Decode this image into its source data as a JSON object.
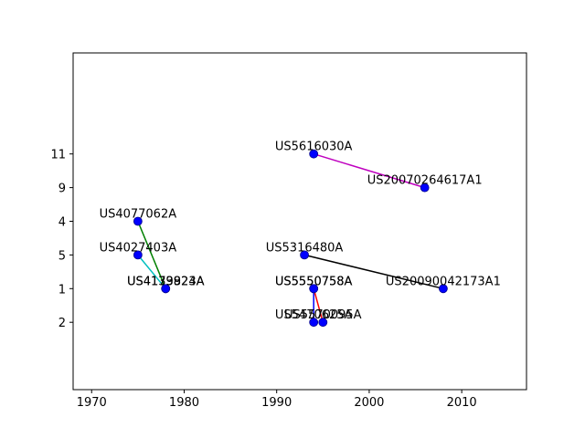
{
  "chart_data": {
    "type": "scatter",
    "title": "",
    "xlabel": "",
    "ylabel": "",
    "xlim": [
      1968,
      2017
    ],
    "y_slots": [
      -1,
      9
    ],
    "x_ticks": [
      1970,
      1980,
      1990,
      2000,
      2010
    ],
    "y_ticks": [
      {
        "slot": 1,
        "label": "2"
      },
      {
        "slot": 2,
        "label": "1"
      },
      {
        "slot": 3,
        "label": "5"
      },
      {
        "slot": 4,
        "label": "4"
      },
      {
        "slot": 5,
        "label": "9"
      },
      {
        "slot": 6,
        "label": "11"
      }
    ],
    "grid": false,
    "marker_color": "#0000ff",
    "points": [
      {
        "id": "p1",
        "label": "US4077062A",
        "x": 1975,
        "slot": 4
      },
      {
        "id": "p2",
        "label": "US4027403A",
        "x": 1975,
        "slot": 3
      },
      {
        "id": "p3",
        "label": "US4179824A",
        "x": 1978,
        "slot": 2
      },
      {
        "id": "p4",
        "label": "US4133923A",
        "x": 1978,
        "slot": 2
      },
      {
        "id": "p5",
        "label": "US5616030A",
        "x": 1994,
        "slot": 6
      },
      {
        "id": "p6",
        "label": "US20070264617A1",
        "x": 2006,
        "slot": 5
      },
      {
        "id": "p7",
        "label": "US5316480A",
        "x": 1993,
        "slot": 3
      },
      {
        "id": "p8",
        "label": "US20090042173A1",
        "x": 2008,
        "slot": 2
      },
      {
        "id": "p9",
        "label": "US5550758A",
        "x": 1994,
        "slot": 2
      },
      {
        "id": "p10",
        "label": "US5550758A",
        "x": 1994,
        "slot": 2
      },
      {
        "id": "p11",
        "label": "US5470625A",
        "x": 1994,
        "slot": 1
      },
      {
        "id": "p12",
        "label": "US5570095A",
        "x": 1995,
        "slot": 1
      }
    ],
    "links": [
      {
        "from": "p1",
        "to": "p3",
        "color": "#008000"
      },
      {
        "from": "p2",
        "to": "p4",
        "color": "#00bfbf"
      },
      {
        "from": "p5",
        "to": "p6",
        "color": "#bf00bf"
      },
      {
        "from": "p7",
        "to": "p8",
        "color": "#000000"
      },
      {
        "from": "p9",
        "to": "p11",
        "color": "#0000ff"
      },
      {
        "from": "p10",
        "to": "p12",
        "color": "#ff0000"
      }
    ]
  }
}
